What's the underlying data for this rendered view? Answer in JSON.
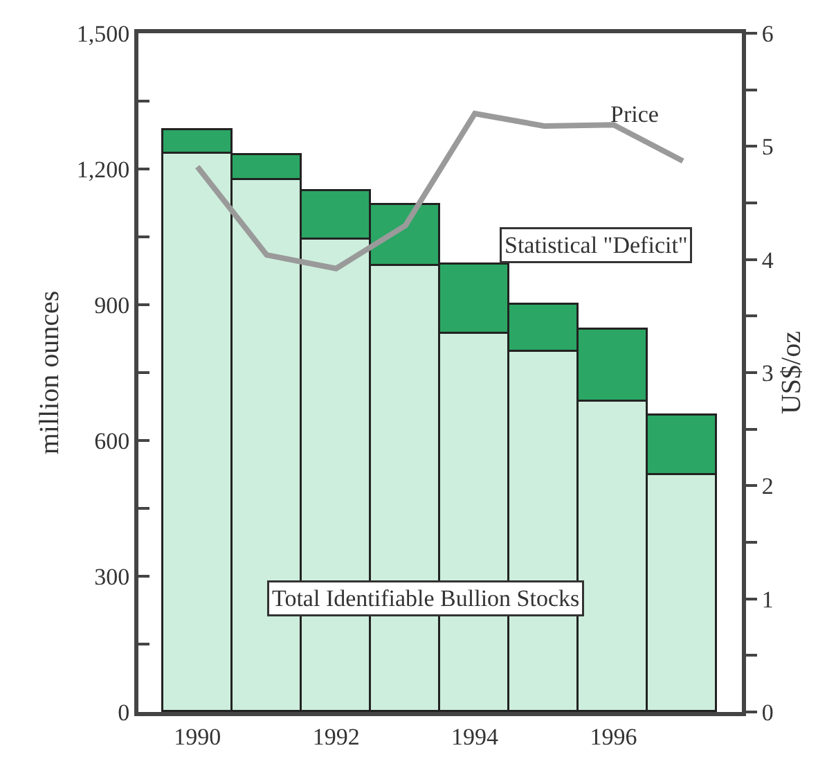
{
  "chart_data": {
    "type": "bar",
    "stacked": true,
    "legend": false,
    "categories": [
      "1990",
      null,
      "1992",
      null,
      "1994",
      null,
      "1996",
      null
    ],
    "ylabel": "million ounces",
    "y2label": "US$/oz",
    "ylim": [
      0,
      1500
    ],
    "yticks": [
      0,
      {
        "value": 150,
        "label": null
      },
      {
        "value": 300,
        "label": "300"
      },
      {
        "value": 450,
        "label": null
      },
      600,
      {
        "value": 750,
        "label": null
      },
      900,
      {
        "value": 1050,
        "label": null
      },
      {
        "value": 1200,
        "label": "1,200"
      },
      {
        "value": 1350,
        "label": null
      },
      {
        "value": 1500,
        "label": "1,500"
      }
    ],
    "y2lim": [
      0,
      6
    ],
    "y2ticks": [
      0,
      {
        "value": 0.5,
        "label": null
      },
      1,
      {
        "value": 1.5,
        "label": null
      },
      2,
      {
        "value": 2.5,
        "label": null
      },
      3,
      {
        "value": 3.5,
        "label": null
      },
      4,
      {
        "value": 4.5,
        "label": null
      },
      5,
      {
        "value": 5.5,
        "label": null
      },
      6
    ],
    "series": [
      {
        "name": "Total Identifiable Bullion Stocks",
        "color": "#cdeedc",
        "values": [
          1235,
          1175,
          1045,
          985,
          835,
          795,
          685,
          525
        ]
      },
      {
        "name": "Statistical \"Deficit\"",
        "color": "#2ba664",
        "values": [
          50,
          55,
          105,
          135,
          155,
          105,
          160,
          130
        ]
      },
      {
        "name": "Price",
        "type": "line",
        "axis": "y2",
        "color": "#9a9a9a",
        "line_style": "solid",
        "marker": "none",
        "values": [
          4.82,
          4.04,
          3.92,
          4.3,
          5.29,
          5.18,
          5.19,
          4.87
        ]
      }
    ]
  }
}
